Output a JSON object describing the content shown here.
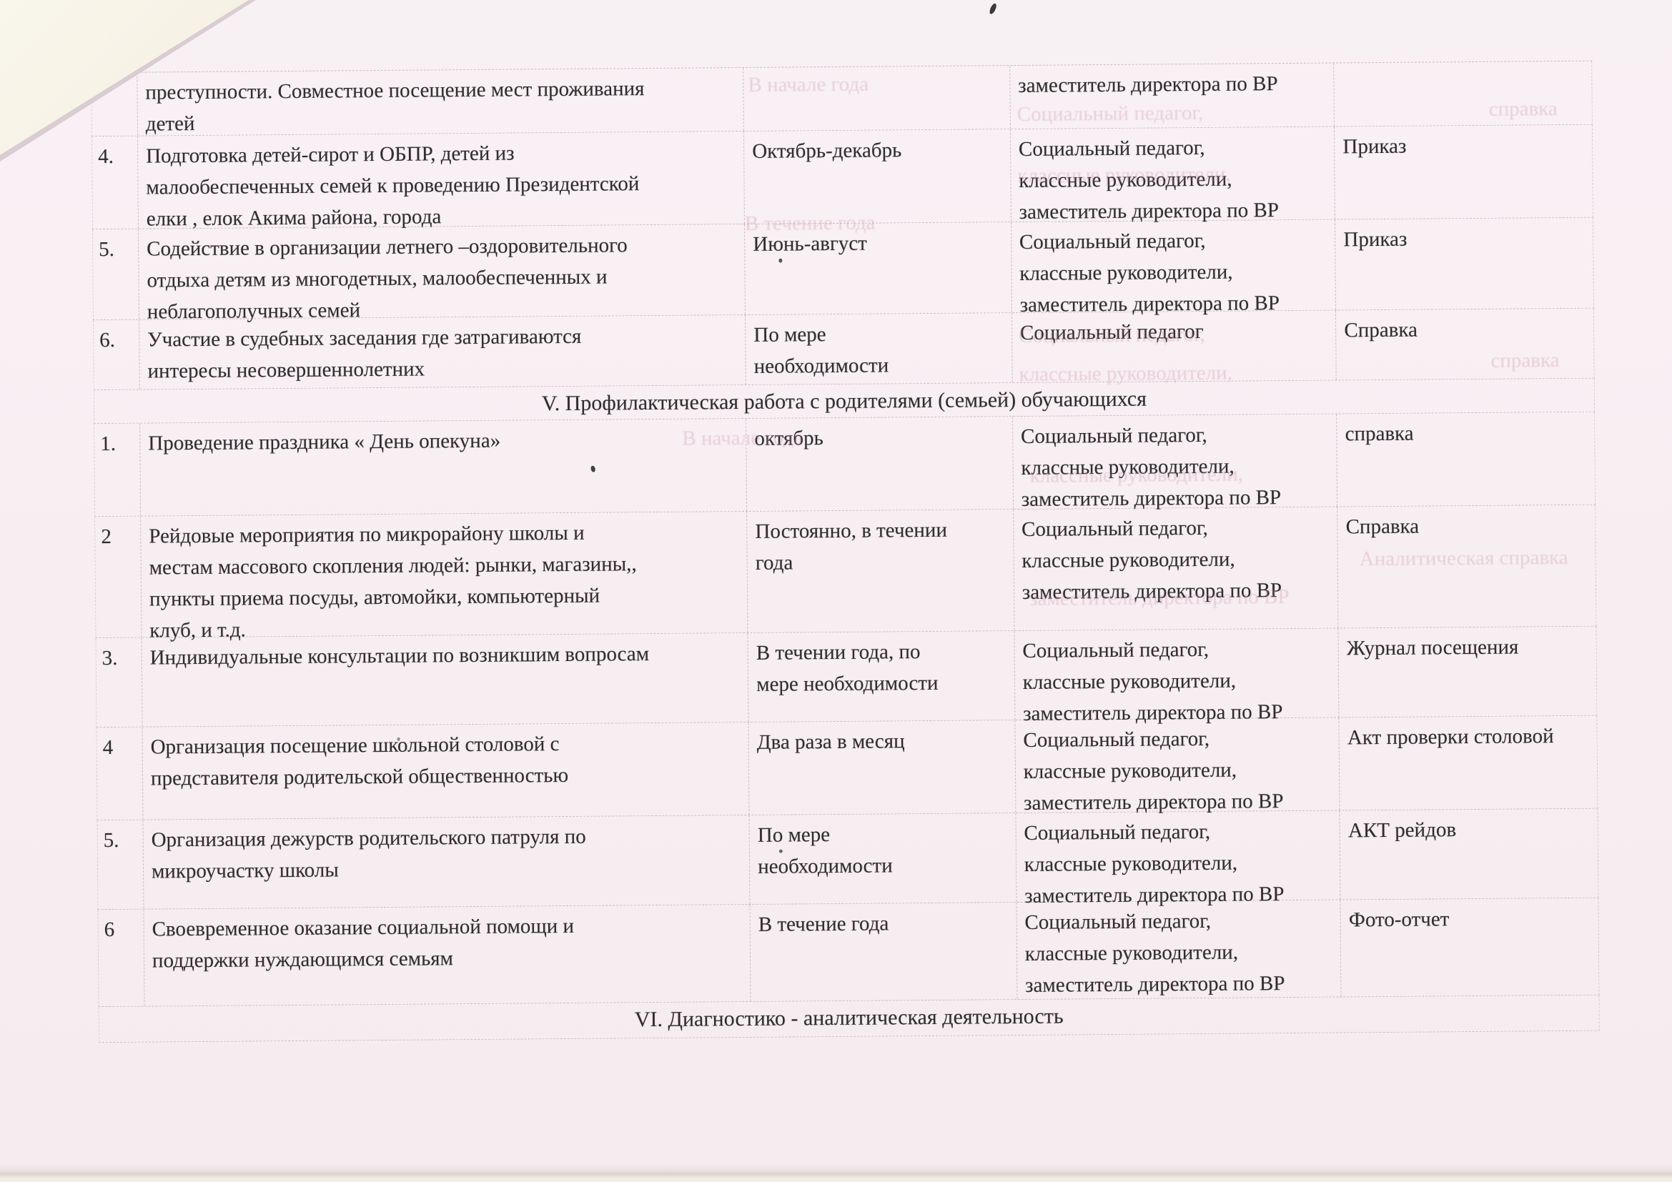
{
  "colors": {
    "paper": "#f7eef2",
    "ink": "#2f2d2f",
    "table_border": "#a88a98",
    "bleedthrough": "#c888a2",
    "folded_corner": "#f6f2e6"
  },
  "table": {
    "rows": [
      {
        "type": "data",
        "num": "",
        "activity": "преступности. Совместное посещение мест проживания\nдетей",
        "timing": "",
        "responsible": "заместитель директора по ВР",
        "document": ""
      },
      {
        "type": "data",
        "num": "4.",
        "activity": "Подготовка детей-сирот и ОБПР, детей  из\nмалообеспеченных семей к проведению  Президентской\nелки ,   елок Акима района, города",
        "timing": "Октябрь-декабрь",
        "responsible": "Социальный педагог,\nклассные руководители,\nзаместитель директора по ВР",
        "document": "Приказ"
      },
      {
        "type": "data",
        "num": "5.",
        "activity": "Содействие  в организации летнего –оздоровительного\nотдыха детям из многодетных, малообеспеченных и\nнеблагополучных семей",
        "timing": "Июнь-август",
        "responsible": "Социальный педагог,\nклассные руководители,\nзаместитель директора по ВР",
        "document": "Приказ"
      },
      {
        "type": "data",
        "num": "6.",
        "activity": "Участие в судебных заседания  где затрагиваются\nинтересы несовершеннолетних",
        "timing": "По мере\nнеобходимости",
        "responsible": "Социальный педагог",
        "document": "Справка"
      },
      {
        "type": "section",
        "title": "V. Профилактическая работа с родителями (семьей) обучающихся"
      },
      {
        "type": "data",
        "num": "1.",
        "activity": "Проведение праздника « День опекуна»",
        "timing": "октябрь",
        "responsible": "Социальный педагог,\nклассные руководители,\nзаместитель директора по ВР",
        "document": "справка"
      },
      {
        "type": "data",
        "num": "2",
        "activity": "Рейдовые мероприятия по микрорайону школы и\nместам массового скопления людей: рынки, магазины,,\nпункты приема посуды, автомойки, компьютерный\nклуб, и т.д.",
        "timing": "Постоянно, в течении\nгода",
        "responsible": "Социальный педагог,\nклассные руководители,\nзаместитель директора по ВР",
        "document": "Справка"
      },
      {
        "type": "data",
        "num": "3.",
        "activity": "Индивидуальные консультации по возникшим вопросам",
        "timing": "В течении года, по\nмере необходимости",
        "responsible": "Социальный педагог,\nклассные руководители,\nзаместитель директора по ВР",
        "document": "Журнал посещения"
      },
      {
        "type": "data",
        "num": "4",
        "activity": "Организация посещение  школьной столовой с\nпредставителя родительской общественностью",
        "timing": "Два раза в месяц",
        "responsible": "Социальный педагог,\nклассные руководители,\nзаместитель директора по ВР",
        "document": "Акт проверки столовой"
      },
      {
        "type": "data",
        "num": "5.",
        "activity": "Организация дежурств родительского патруля по\nмикроучастку школы",
        "timing": "По мере\nнеобходимости",
        "responsible": "Социальный педагог,\nклассные руководители,\nзаместитель директора по ВР",
        "document": "АКТ рейдов"
      },
      {
        "type": "data",
        "num": "6",
        "activity": "Своевременное оказание социальной помощи и\nподдержки нуждающимся семьям",
        "timing": "В течение года",
        "responsible": "Социальный педагог,\nклассные руководители,\nзаместитель директора по ВР",
        "document": "Фото-отчет"
      },
      {
        "type": "section",
        "title": "VI. Диагностико - аналитическая деятельность"
      }
    ]
  },
  "bleedthrough": [
    {
      "text": "В начале года"
    },
    {
      "text": "Социальный педагог,"
    },
    {
      "text": "справка"
    },
    {
      "text": "классные руководители,"
    },
    {
      "text": "В течение года"
    },
    {
      "text": "Социальный педагог,"
    },
    {
      "text": "классные руководители,"
    },
    {
      "text": "справка"
    },
    {
      "text": "В начале года"
    },
    {
      "text": "классные руководители,"
    },
    {
      "text": "Аналитическая справка"
    },
    {
      "text": "заместитель директора по ВР"
    }
  ]
}
